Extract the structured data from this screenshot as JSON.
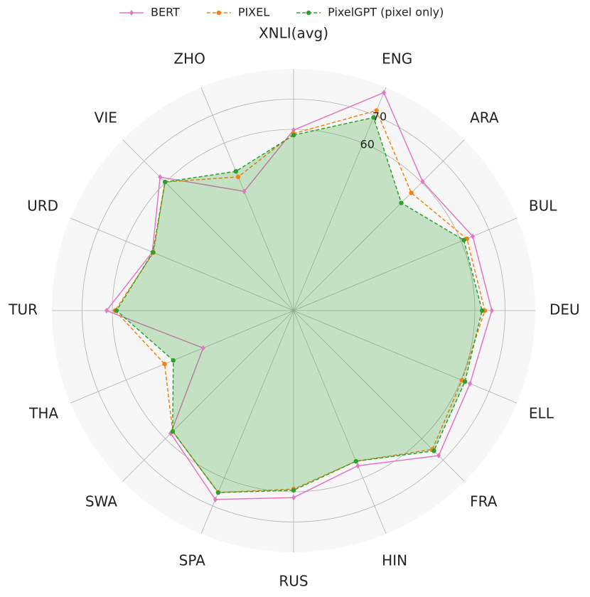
{
  "chart_data": {
    "type": "radar",
    "title": "XNLI(avg)",
    "categories": [
      null,
      "ENG",
      "ARA",
      "BUL",
      "DEU",
      "ELL",
      "FRA",
      "HIN",
      "RUS",
      "SPA",
      "SWA",
      "THA",
      "TUR",
      "URD",
      "VIE",
      "ZHO"
    ],
    "ylim": [
      0,
      80
    ],
    "yticks": [
      60,
      70
    ],
    "grid": true,
    "legend": "top",
    "series": [
      {
        "name": "BERT",
        "color": "#e377c2",
        "linestyle": "solid",
        "marker": "diamond",
        "fill": false,
        "values": [
          59.8,
          78.1,
          60.4,
          64.2,
          65.6,
          63.2,
          67.9,
          55.6,
          61.9,
          67.7,
          57.5,
          32.4,
          61.9,
          50.6,
          62.5,
          42.7
        ]
      },
      {
        "name": "PIXEL",
        "color": "#ff7f0e",
        "linestyle": "dashed",
        "marker": "circle",
        "fill": false,
        "values": [
          58.6,
          71.7,
          55.1,
          62.1,
          63.3,
          60.3,
          65.0,
          54.0,
          59.1,
          65.2,
          56.6,
          46.2,
          59.1,
          50.2,
          60.2,
          47.9
        ]
      },
      {
        "name": "PixelGPT (pixel only)",
        "color": "#2ca02c",
        "linestyle": "dashed",
        "marker": "circle",
        "fill": true,
        "values": [
          58.1,
          69.2,
          50.4,
          61.0,
          62.4,
          61.4,
          65.7,
          54.0,
          59.5,
          65.2,
          56.6,
          43.1,
          58.6,
          50.4,
          60.2,
          49.9
        ]
      }
    ]
  }
}
